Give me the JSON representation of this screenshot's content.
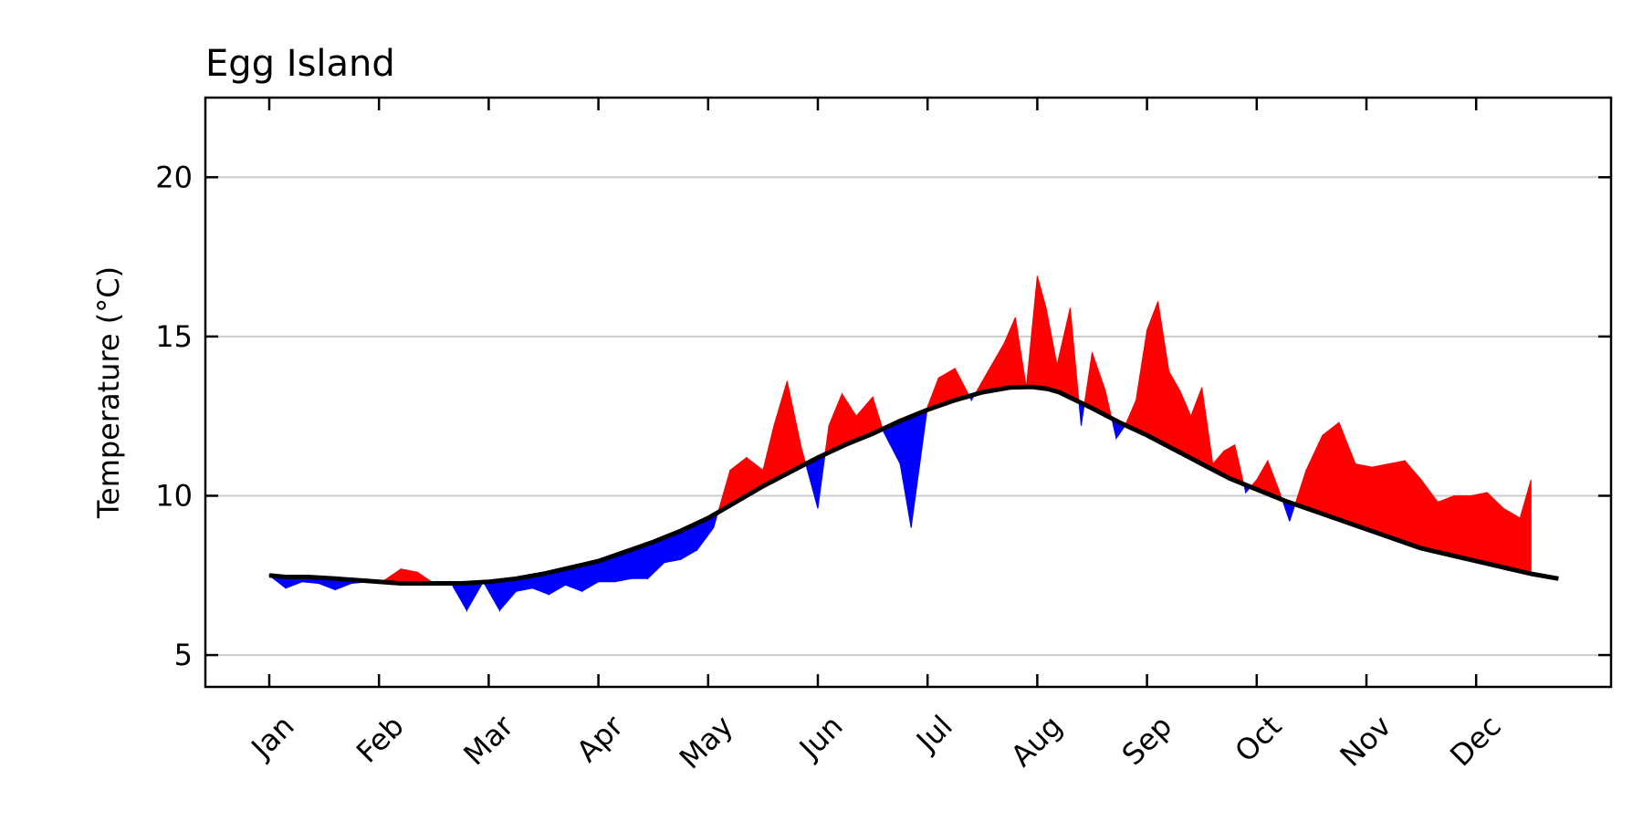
{
  "chart_data": {
    "type": "area",
    "title": "Egg Island",
    "ylabel": "Temperature (°C)",
    "xlabel": "",
    "ylim": [
      4,
      22.5
    ],
    "xlim": [
      0,
      12.75
    ],
    "y_ticks": [
      5,
      10,
      15,
      20
    ],
    "y_tick_labels": [
      "5",
      "10",
      "15",
      "20"
    ],
    "x_tick_positions": [
      0,
      1,
      2,
      3,
      4,
      5,
      6,
      7,
      8,
      9,
      10,
      11
    ],
    "x_tick_labels": [
      "Jan",
      "Feb",
      "Mar",
      "Apr",
      "May",
      "Jun",
      "Jul",
      "Aug",
      "Sep",
      "Oct",
      "Nov",
      "Dec"
    ],
    "grid": "horizontal",
    "colors": {
      "above_climatology": "#ff0000",
      "below_climatology": "#0000ff",
      "climatology_line": "#000000",
      "grid": "#cccccc"
    },
    "series": [
      {
        "role": "climatology",
        "x": [
          0,
          0.15,
          0.35,
          0.6,
          0.8,
          1.0,
          1.2,
          1.5,
          1.75,
          2.0,
          2.25,
          2.5,
          2.75,
          3.0,
          3.25,
          3.5,
          3.75,
          4.0,
          4.25,
          4.5,
          4.75,
          5.0,
          5.25,
          5.5,
          5.75,
          6.0,
          6.25,
          6.5,
          6.75,
          6.95,
          7.1,
          7.2,
          7.35,
          7.5,
          7.75,
          8.0,
          8.25,
          8.5,
          8.75,
          9.0,
          9.25,
          9.5,
          9.75,
          10.0,
          10.25,
          10.5,
          10.75,
          11.0,
          11.25,
          11.5,
          11.75
        ],
        "y": [
          7.5,
          7.45,
          7.45,
          7.4,
          7.35,
          7.3,
          7.25,
          7.25,
          7.25,
          7.3,
          7.4,
          7.55,
          7.75,
          7.95,
          8.25,
          8.55,
          8.9,
          9.3,
          9.8,
          10.3,
          10.75,
          11.2,
          11.6,
          11.95,
          12.35,
          12.7,
          13.0,
          13.25,
          13.4,
          13.42,
          13.35,
          13.25,
          13.0,
          12.75,
          12.3,
          11.9,
          11.45,
          11.0,
          10.55,
          10.2,
          9.85,
          9.55,
          9.25,
          8.95,
          8.65,
          8.35,
          8.15,
          7.95,
          7.75,
          7.55,
          7.4
        ]
      },
      {
        "role": "observed",
        "x": [
          0,
          0.15,
          0.3,
          0.45,
          0.6,
          0.75,
          0.9,
          1.05,
          1.2,
          1.35,
          1.5,
          1.65,
          1.8,
          1.95,
          2.1,
          2.25,
          2.4,
          2.55,
          2.7,
          2.85,
          3.0,
          3.15,
          3.3,
          3.45,
          3.6,
          3.75,
          3.9,
          4.05,
          4.2,
          4.35,
          4.5,
          4.6,
          4.72,
          4.85,
          5.0,
          5.1,
          5.22,
          5.35,
          5.5,
          5.6,
          5.75,
          5.85,
          6.0,
          6.1,
          6.25,
          6.4,
          6.55,
          6.7,
          6.8,
          6.9,
          7.0,
          7.08,
          7.18,
          7.3,
          7.4,
          7.5,
          7.62,
          7.72,
          7.8,
          7.9,
          8.0,
          8.1,
          8.2,
          8.3,
          8.4,
          8.5,
          8.6,
          8.7,
          8.8,
          8.9,
          9.0,
          9.1,
          9.2,
          9.3,
          9.45,
          9.6,
          9.75,
          9.9,
          10.05,
          10.2,
          10.35,
          10.5,
          10.65,
          10.8,
          10.95,
          11.1,
          11.25,
          11.4,
          11.5
        ],
        "y": [
          7.5,
          7.1,
          7.3,
          7.25,
          7.05,
          7.25,
          7.3,
          7.35,
          7.7,
          7.6,
          7.25,
          7.3,
          6.4,
          7.3,
          6.4,
          7.0,
          7.1,
          6.9,
          7.2,
          7.0,
          7.3,
          7.3,
          7.4,
          7.4,
          7.9,
          8.0,
          8.3,
          9.0,
          10.8,
          11.2,
          10.8,
          12.2,
          13.6,
          11.5,
          9.6,
          12.2,
          13.2,
          12.5,
          13.1,
          12.0,
          11.0,
          9.0,
          12.8,
          13.7,
          14.0,
          13.0,
          13.9,
          14.8,
          15.6,
          13.4,
          16.9,
          15.9,
          14.1,
          15.9,
          12.2,
          14.5,
          13.3,
          11.8,
          12.2,
          13.0,
          15.2,
          16.1,
          13.9,
          13.3,
          12.5,
          13.4,
          11.0,
          11.4,
          11.6,
          10.1,
          10.5,
          11.1,
          10.2,
          9.2,
          10.8,
          11.9,
          12.3,
          11.0,
          10.9,
          11.0,
          11.1,
          10.5,
          9.8,
          10.0,
          10.0,
          10.1,
          9.6,
          9.3,
          10.5
        ]
      }
    ]
  }
}
